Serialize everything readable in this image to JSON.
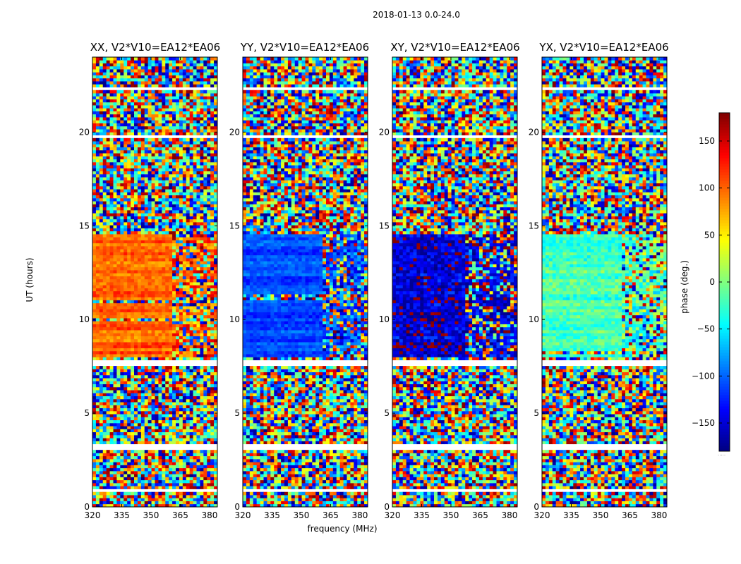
{
  "chart_data": {
    "type": "heatmap",
    "title": "2018-01-13 0.0-24.0",
    "xlabel": "frequency (MHz)",
    "ylabel": "UT (hours)",
    "xlim": [
      320,
      384
    ],
    "ylim": [
      0,
      24
    ],
    "x_ticks": [
      320,
      335,
      350,
      365,
      380
    ],
    "y_ticks": [
      0,
      5,
      10,
      15,
      20
    ],
    "panels": [
      {
        "title": "XX, V2*V10=EA12*EA06",
        "active_phase_deg": 100,
        "phase_spread_deg": 35,
        "feature_change_mhz": 361
      },
      {
        "title": "YY, V2*V10=EA12*EA06",
        "active_phase_deg": -110,
        "phase_spread_deg": 30,
        "feature_change_mhz": 361
      },
      {
        "title": "XY, V2*V10=EA12*EA06",
        "active_phase_deg": -150,
        "phase_spread_deg": 70,
        "feature_change_mhz": 357
      },
      {
        "title": "YX, V2*V10=EA12*EA06",
        "active_phase_deg": -20,
        "phase_spread_deg": 45,
        "feature_change_mhz": 361
      }
    ],
    "active_period_hours": [
      8.0,
      14.6
    ],
    "flagged_gap_hours": [
      [
        0.8,
        0.9
      ],
      [
        3.0,
        3.3
      ],
      [
        7.6,
        7.9
      ],
      [
        19.7,
        19.9
      ],
      [
        22.3,
        22.4
      ]
    ],
    "colorbar": {
      "label": "phase (deg.)",
      "range": [
        -180,
        180
      ],
      "ticks": [
        -150,
        -100,
        -50,
        0,
        50,
        100,
        150
      ],
      "tick_labels": [
        "−150",
        "−100",
        "−50",
        "0",
        "50",
        "100",
        "150"
      ],
      "colormap": "jet",
      "footnote": "....."
    }
  }
}
